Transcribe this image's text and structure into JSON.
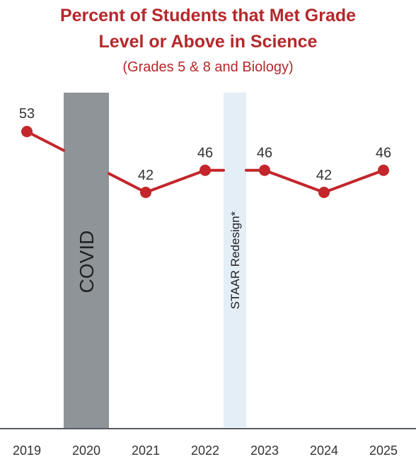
{
  "title_line1": "Percent of Students that Met Grade",
  "title_line2": "Level or Above in Science",
  "subtitle": "(Grades 5 & 8 and Biology)",
  "colors": {
    "title": "#b5282b",
    "series": "#c3262b",
    "covid_band": "#8e9498",
    "staar_band": "#e4eef7",
    "axis": "#555b61",
    "tick_text": "#333333",
    "value_text": "#333333"
  },
  "chart_data": {
    "type": "line",
    "categories": [
      "2019",
      "2020",
      "2021",
      "2022",
      "2023",
      "2024",
      "2025"
    ],
    "series": [
      {
        "values": [
          53,
          null,
          42,
          46,
          46,
          42,
          46
        ]
      }
    ],
    "data_labels": [
      "53",
      "",
      "42",
      "46",
      "46",
      "42",
      "46"
    ],
    "annotations": [
      {
        "label": "COVID",
        "at_category": "2020"
      },
      {
        "label": "STAAR Redesign*",
        "between": [
          "2022",
          "2023"
        ]
      }
    ],
    "ylim": [
      0,
      60
    ],
    "grid": false,
    "legend": "none"
  }
}
